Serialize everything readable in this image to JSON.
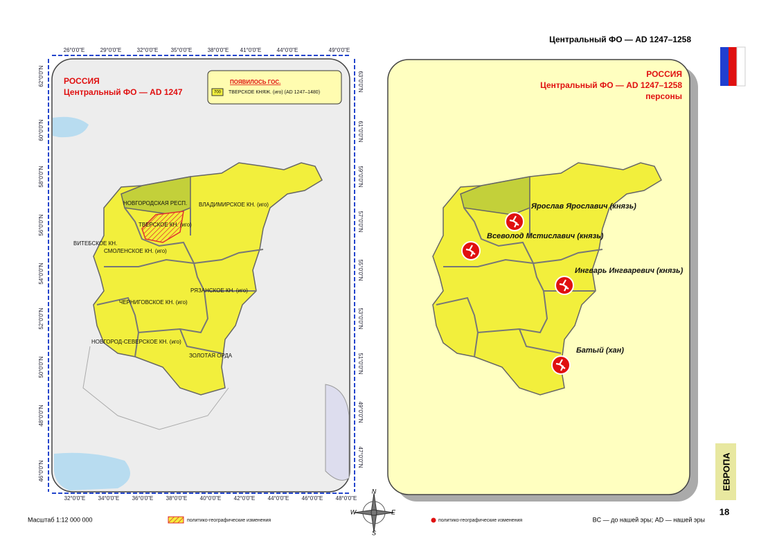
{
  "header": {
    "title": "Центральный ФО — AD 1247–1258"
  },
  "left_map": {
    "country": "РОССИЯ",
    "subtitle": "Центральный ФО — AD 1247",
    "legend": {
      "heading": "ПОЯВИЛОСЬ ГОС.",
      "code": "700",
      "item": "ТВЕРСКОЕ КНЯЖ. (иго) (AD 1247–1480)"
    },
    "regions": [
      "НОВГОРОДСКАЯ РЕСП.",
      "ВЛАДИМИРСКОЕ КН. (иго)",
      "ТВЕРСКОЕ КН. (иго)",
      "ВИТЕБСКОЕ  КН.",
      "СМОЛЕНСКОЕ КН. (иго)",
      "РЯЗАНСКОЕ КН. (иго)",
      "ЧЕРНИГОВСКОЕ КН. (иго)",
      "НОВГОРОД-СЕВЕРСКОЕ КН. (иго)",
      "ЗОЛОТАЯ ОРДА"
    ],
    "top_ticks": [
      "26°0'0\"E",
      "29°0'0\"E",
      "32°0'0\"E",
      "35°0'0\"E",
      "38°0'0\"E",
      "41°0'0\"E",
      "44°0'0\"E",
      "49°0'0\"E"
    ],
    "bottom_ticks": [
      "32°0'0\"E",
      "34°0'0\"E",
      "36°0'0\"E",
      "38°0'0\"E",
      "40°0'0\"E",
      "42°0'0\"E",
      "44°0'0\"E",
      "46°0'0\"E",
      "48°0'0\"E"
    ],
    "left_ticks": [
      "62°0'0\"N",
      "60°0'0\"N",
      "58°0'0\"N",
      "56°0'0\"N",
      "54°0'0\"N",
      "52°0'0\"N",
      "50°0'0\"N",
      "48°0'0\"N",
      "46°0'0\"N"
    ],
    "right_ticks": [
      "63°0'0\"N",
      "61°0'0\"N",
      "59°0'0\"N",
      "57°0'0\"N",
      "55°0'0\"N",
      "53°0'0\"N",
      "51°0'0\"N",
      "49°0'0\"N",
      "47°0'0\"N"
    ]
  },
  "right_map": {
    "title": [
      "РОССИЯ",
      "Центральный ФО — AD 1247–1258",
      "персоны"
    ],
    "persons": [
      "Ярослав Ярославич (князь)",
      "Всеволод Мстиславич (князь)",
      "Ингварь Ингваревич (князь)",
      "Батый (хан)"
    ]
  },
  "compass": [
    "N",
    "E",
    "S",
    "W"
  ],
  "footer": {
    "scale": "Масштаб 1:12 000 000",
    "legend_left": "политико-географические изменения",
    "legend_right": "политико-географические изменения",
    "era_note": "BC — до нашей эры; AD — нашей эры",
    "section": "ЕВРОПА",
    "page": "18"
  }
}
